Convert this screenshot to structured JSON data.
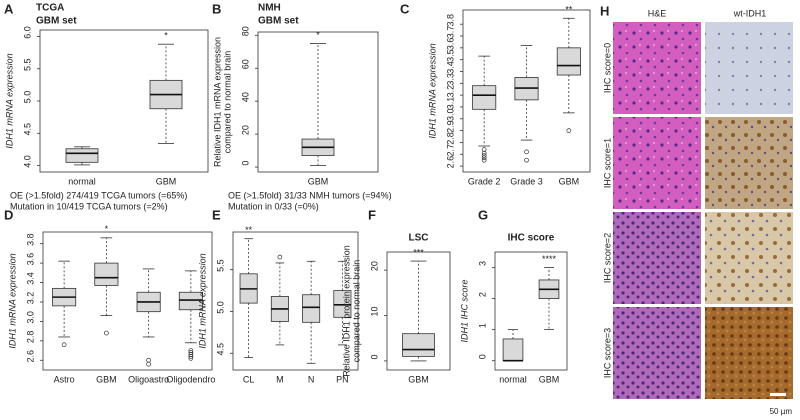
{
  "chart_data": [
    {
      "type": "box",
      "panel": "A",
      "title": [
        "TCGA",
        "GBM set"
      ],
      "ylabel": [
        "IDH1 mRNA expression"
      ],
      "annotation": "*",
      "categories": [
        "normal",
        "GBM"
      ],
      "boxes": [
        {
          "min": 4.01,
          "q1": 4.05,
          "median": 4.19,
          "q3": 4.26,
          "max": 4.29,
          "outliers": []
        },
        {
          "min": 4.34,
          "q1": 4.88,
          "median": 5.1,
          "q3": 5.32,
          "max": 5.88,
          "outliers": []
        }
      ],
      "ylim": [
        3.9,
        6.1
      ],
      "yticks": [
        {
          "value": 4,
          "label": "4.0"
        },
        4.5,
        {
          "value": 5,
          "label": "5.0"
        },
        5.5,
        {
          "value": 6,
          "label": "6.0"
        }
      ],
      "notes": [
        "OE (>1.5fold) 274/419 TCGA tumors (=65%)",
        "Mutation in 10/419 TCGA tumors (=2%)"
      ]
    },
    {
      "type": "box",
      "panel": "B",
      "title": [
        "NMH",
        "GBM set"
      ],
      "ylabel": [
        "Relative IDH1 mRNA expression",
        "compared to normal brain"
      ],
      "annotation": "*",
      "categories": [
        "GBM"
      ],
      "boxes": [
        {
          "min": 1,
          "q1": 7,
          "median": 12,
          "q3": 17,
          "max": 75,
          "outliers": []
        }
      ],
      "ylim": [
        -3,
        82
      ],
      "yticks": [
        0,
        20,
        40,
        60,
        80
      ],
      "notes": [
        "OE (>1.5fold) 31/33 NMH tumors (=94%)",
        "Mutation in 0/33 (=0%)"
      ]
    },
    {
      "type": "box",
      "panel": "C",
      "ylabel": [
        "IDH1 mRNA expression"
      ],
      "annotation": "**",
      "categories": [
        "Grade 2",
        "Grade 3",
        "GBM"
      ],
      "boxes": [
        {
          "min": 2.77,
          "q1": 3.08,
          "median": 3.2,
          "q3": 3.28,
          "max": 3.53,
          "outliers": [
            2.74,
            2.71,
            2.69,
            2.67,
            2.65
          ]
        },
        {
          "min": 2.82,
          "q1": 3.16,
          "median": 3.26,
          "q3": 3.35,
          "max": 3.62,
          "outliers": [
            2.72,
            2.65
          ]
        },
        {
          "min": 3.05,
          "q1": 3.37,
          "median": 3.45,
          "q3": 3.6,
          "max": 3.85,
          "outliers": [
            2.9
          ]
        }
      ],
      "ylim": [
        2.55,
        3.92
      ],
      "yticks": [
        2.6,
        2.7,
        2.8,
        2.9,
        {
          "value": 3,
          "label": "3.0"
        },
        3.1,
        3.2,
        3.3,
        3.4,
        3.5,
        3.6,
        3.7,
        3.8
      ]
    },
    {
      "type": "box",
      "panel": "D",
      "ylabel": [
        "IDH1 mRNA expression"
      ],
      "annotation": "*",
      "categories": [
        "Astro",
        "GBM",
        "Oligoastro",
        "Oligodendro"
      ],
      "boxes": [
        {
          "min": 2.84,
          "q1": 3.16,
          "median": 3.25,
          "q3": 3.34,
          "max": 3.62,
          "outliers": [
            2.76
          ]
        },
        {
          "min": 3.06,
          "q1": 3.37,
          "median": 3.45,
          "q3": 3.6,
          "max": 3.86,
          "outliers": [
            2.88
          ]
        },
        {
          "min": 2.84,
          "q1": 3.1,
          "median": 3.2,
          "q3": 3.3,
          "max": 3.54,
          "outliers": [
            2.6,
            2.56
          ]
        },
        {
          "min": 2.78,
          "q1": 3.12,
          "median": 3.22,
          "q3": 3.3,
          "max": 3.52,
          "outliers": [
            2.7,
            2.68,
            2.66,
            2.64,
            2.62
          ]
        }
      ],
      "ylim": [
        2.5,
        3.92
      ],
      "yticks": [
        2.6,
        2.8,
        {
          "value": 3,
          "label": "3.0"
        },
        3.2,
        3.4,
        3.6,
        3.8
      ]
    },
    {
      "type": "box",
      "panel": "E",
      "ylabel": [
        "IDH1 mRNA expression"
      ],
      "annotation": "**",
      "categories": [
        "CL",
        "M",
        "N",
        "PN"
      ],
      "boxes": [
        {
          "min": 4.45,
          "q1": 5.1,
          "median": 5.27,
          "q3": 5.45,
          "max": 5.87,
          "outliers": []
        },
        {
          "min": 4.6,
          "q1": 4.88,
          "median": 5.03,
          "q3": 5.18,
          "max": 5.58,
          "outliers": [
            5.65
          ]
        },
        {
          "min": 4.38,
          "q1": 4.87,
          "median": 5.05,
          "q3": 5.2,
          "max": 5.6,
          "outliers": []
        },
        {
          "min": 4.6,
          "q1": 4.93,
          "median": 5.08,
          "q3": 5.25,
          "max": 5.6,
          "outliers": []
        }
      ],
      "ylim": [
        4.3,
        5.95
      ],
      "yticks": [
        4.5,
        {
          "value": 5,
          "label": "5.0"
        },
        5.5
      ]
    },
    {
      "type": "box",
      "panel": "F",
      "title": [
        "LSC"
      ],
      "ylabel": [
        "Relative IDH1 protein expression",
        "compared to normal brain"
      ],
      "annotation": "***",
      "categories": [
        "GBM"
      ],
      "boxes": [
        {
          "min": 0,
          "q1": 1,
          "median": 2.5,
          "q3": 6,
          "max": 22,
          "outliers": []
        }
      ],
      "ylim": [
        -2,
        24
      ],
      "yticks": [
        0,
        10,
        20
      ]
    },
    {
      "type": "box",
      "panel": "G",
      "title": [
        "IHC score"
      ],
      "ylabel": [
        "IDH1 IHC score"
      ],
      "annotation": "****",
      "categories": [
        "normal",
        "GBM"
      ],
      "boxes": [
        {
          "min": 0,
          "q1": 0,
          "median": 0,
          "q3": 0.7,
          "max": 1,
          "outliers": []
        },
        {
          "min": 1,
          "q1": 2,
          "median": 2.3,
          "q3": 2.6,
          "max": 3,
          "outliers": []
        }
      ],
      "ylim": [
        -0.3,
        3.5
      ],
      "yticks": [
        0,
        1,
        2,
        3
      ]
    }
  ],
  "figure_h": {
    "panel": "H",
    "columns": [
      "H&E",
      "wt-IDH1"
    ],
    "rows": [
      "IHC score=0",
      "IHC score=1",
      "IHC score=2",
      "IHC score=3"
    ],
    "scale_bar": "50 µm"
  }
}
